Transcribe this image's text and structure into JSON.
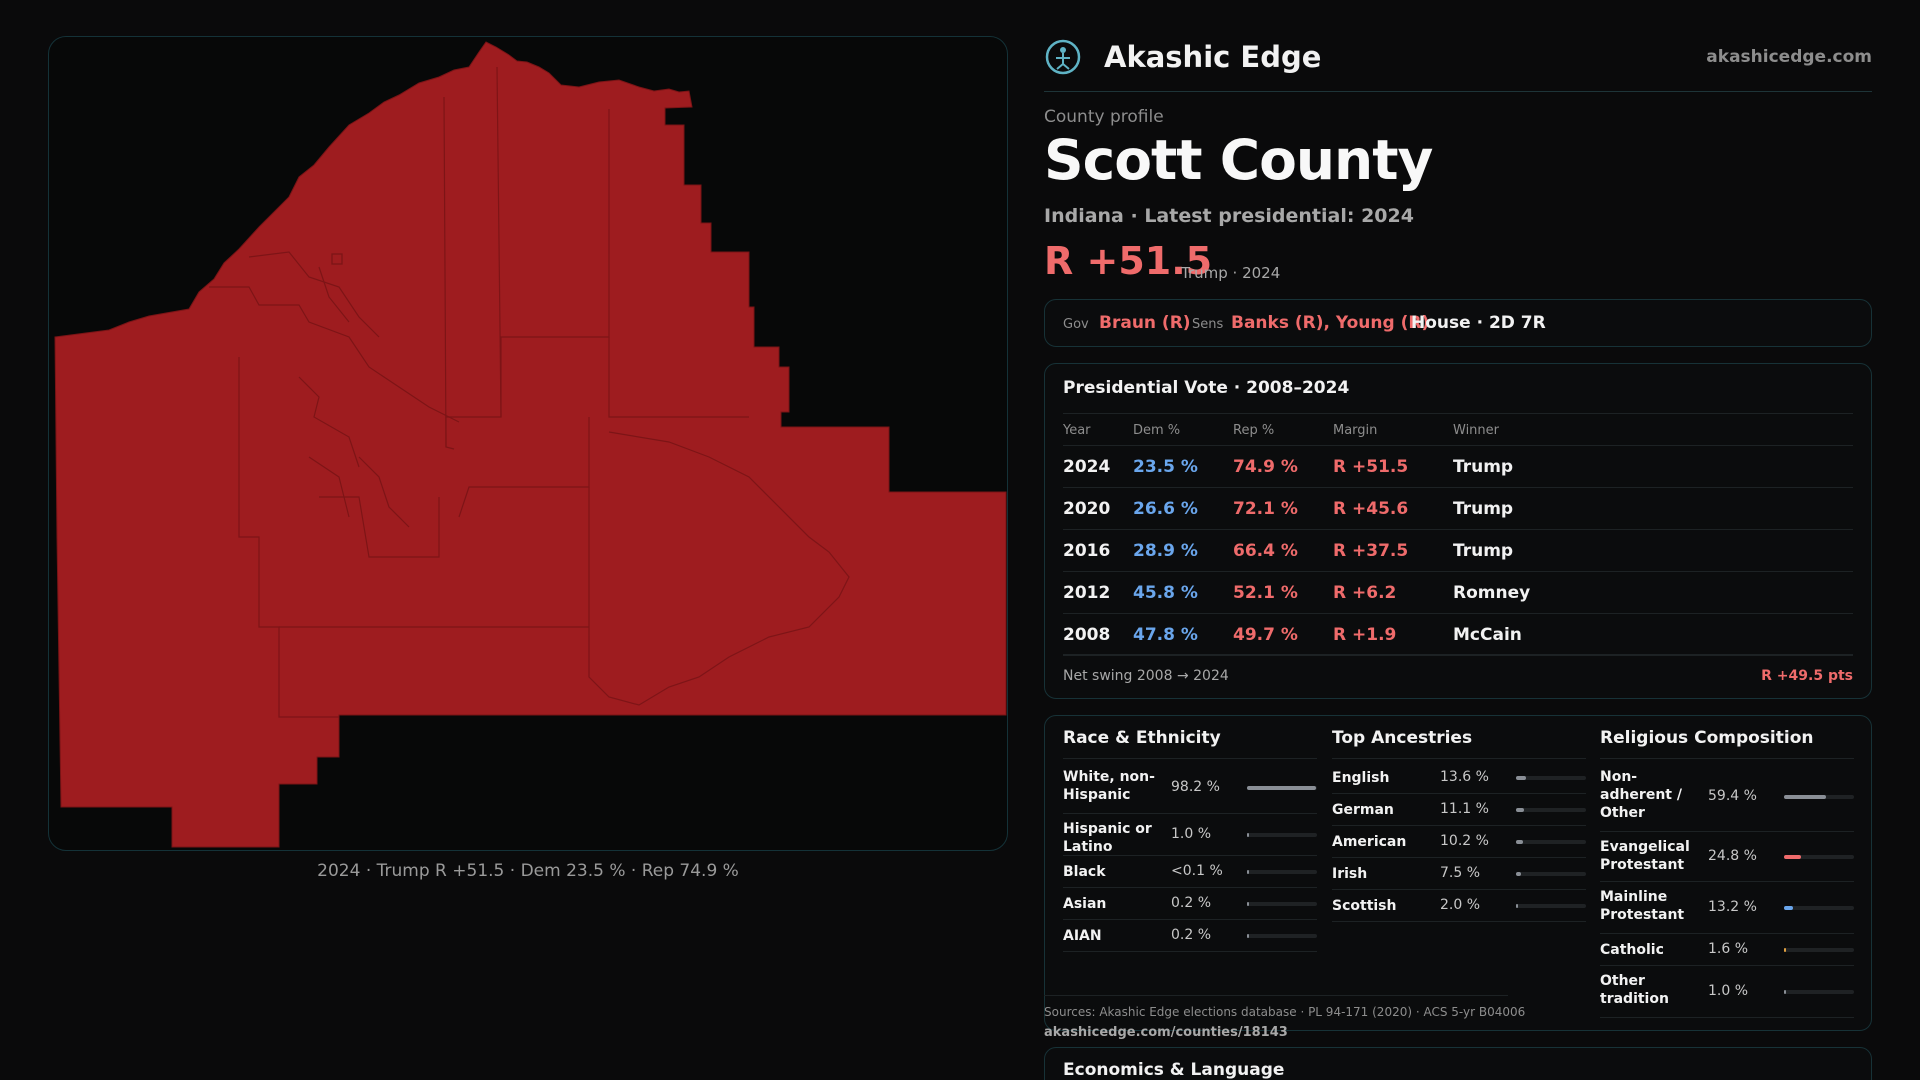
{
  "map": {
    "caption": "2024 · Trump R +51.5 · Dem 23.5 % · Rep 74.9 %",
    "fill_color": "#9e1c1f",
    "border_color": "#143238"
  },
  "brand": {
    "name": "Akashic Edge",
    "site": "akashicedge.com",
    "logo_icon": "akashic-logo-icon"
  },
  "profile": {
    "eyebrow": "County profile",
    "title": "Scott County",
    "subtitle": "Indiana · Latest presidential: 2024",
    "margin": "R +51.5",
    "margin_note": "Trump · 2024"
  },
  "officials": {
    "gov_label": "Gov",
    "gov": "Braun (R)",
    "sens_label": "Sens",
    "sens": "Banks (R), Young (R)",
    "house": "House · 2D 7R"
  },
  "votes": {
    "title": "Presidential Vote · 2008–2024",
    "headers": [
      "Year",
      "Dem %",
      "Rep %",
      "Margin",
      "Winner"
    ],
    "rows": [
      {
        "year": "2024",
        "dem": "23.5 %",
        "rep": "74.9 %",
        "margin": "R +51.5",
        "winner": "Trump"
      },
      {
        "year": "2020",
        "dem": "26.6 %",
        "rep": "72.1 %",
        "margin": "R +45.6",
        "winner": "Trump"
      },
      {
        "year": "2016",
        "dem": "28.9 %",
        "rep": "66.4 %",
        "margin": "R +37.5",
        "winner": "Trump"
      },
      {
        "year": "2012",
        "dem": "45.8 %",
        "rep": "52.1 %",
        "margin": "R +6.2",
        "winner": "Romney"
      },
      {
        "year": "2008",
        "dem": "47.8 %",
        "rep": "49.7 %",
        "margin": "R +1.9",
        "winner": "McCain"
      }
    ],
    "swing_label": "Net swing 2008 → 2024",
    "swing_value": "R +49.5 pts"
  },
  "race": {
    "title": "Race & Ethnicity",
    "rows": [
      {
        "label": "White, non-Hispanic",
        "pct": "98.2 %",
        "value": 98.2,
        "color": "#8a8f96"
      },
      {
        "label": "Hispanic or Latino",
        "pct": "1.0 %",
        "value": 1.0,
        "color": "#8a8f96"
      },
      {
        "label": "Black",
        "pct": "<0.1 %",
        "value": 0.05,
        "color": "#8a8f96"
      },
      {
        "label": "Asian",
        "pct": "0.2 %",
        "value": 0.2,
        "color": "#8a8f96"
      },
      {
        "label": "AIAN",
        "pct": "0.2 %",
        "value": 0.2,
        "color": "#8a8f96"
      }
    ]
  },
  "ancestry": {
    "title": "Top Ancestries",
    "rows": [
      {
        "label": "English",
        "pct": "13.6 %",
        "value": 13.6,
        "color": "#8a8f96"
      },
      {
        "label": "German",
        "pct": "11.1 %",
        "value": 11.1,
        "color": "#8a8f96"
      },
      {
        "label": "American",
        "pct": "10.2 %",
        "value": 10.2,
        "color": "#8a8f96"
      },
      {
        "label": "Irish",
        "pct": "7.5 %",
        "value": 7.5,
        "color": "#8a8f96"
      },
      {
        "label": "Scottish",
        "pct": "2.0 %",
        "value": 2.0,
        "color": "#8a8f96"
      }
    ]
  },
  "religion": {
    "title": "Religious Composition",
    "rows": [
      {
        "label": "Non-adherent / Other",
        "pct": "59.4 %",
        "value": 59.4,
        "color": "#8a8f96"
      },
      {
        "label": "Evangelical Protestant",
        "pct": "24.8 %",
        "value": 24.8,
        "color": "#ef6b6b"
      },
      {
        "label": "Mainline Protestant",
        "pct": "13.2 %",
        "value": 13.2,
        "color": "#6aa6ec"
      },
      {
        "label": "Catholic",
        "pct": "1.6 %",
        "value": 1.6,
        "color": "#e0a040"
      },
      {
        "label": "Other tradition",
        "pct": "1.0 %",
        "value": 1.0,
        "color": "#8a8f96"
      }
    ]
  },
  "sources": {
    "text": "Sources: Akashic Edge elections database · PL 94-171 (2020) · ACS 5-yr B04006",
    "url": "akashicedge.com/counties/18143"
  },
  "economics": {
    "title": "Economics & Language"
  }
}
